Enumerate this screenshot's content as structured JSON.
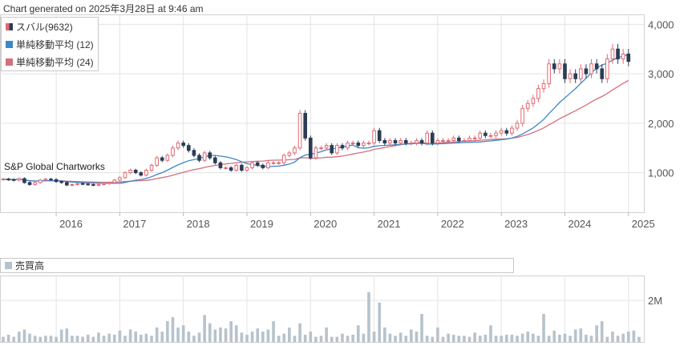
{
  "header": {
    "generated_note": "Chart generated on 2025年3月28日 at 9:46 am"
  },
  "watermark": "S&P Global Chartworks",
  "legend": {
    "items": [
      {
        "label": "スバル(9632)",
        "color": "#e0707a"
      },
      {
        "label": "単純移動平均 (12)",
        "color": "#3d87c9"
      },
      {
        "label": "単純移動平均 (24)",
        "color": "#d4707e"
      }
    ]
  },
  "volume_legend": {
    "label": "売買高",
    "color": "#b7c3cc"
  },
  "colors": {
    "up": "#e06a74",
    "down": "#2d3c55",
    "ma12": "#3d87c9",
    "ma24": "#d4707e",
    "volume": "#b7c3cc",
    "grid": "#e3e3e3"
  },
  "chart_data": [
    {
      "type": "candlestick",
      "interval": "monthly",
      "x_start": "2015-03",
      "x_end": "2025-03",
      "x_tick_labels": [
        "2016",
        "2017",
        "2018",
        "2019",
        "2020",
        "2021",
        "2022",
        "2023",
        "2024",
        "2025"
      ],
      "y_tick_labels": [
        "1,000",
        "2,000",
        "3,000",
        "4,000"
      ],
      "y_ticks": [
        1000,
        2000,
        3000,
        4000
      ],
      "ylim": [
        200,
        4200
      ],
      "close": [
        870,
        860,
        850,
        880,
        800,
        760,
        800,
        850,
        870,
        860,
        820,
        800,
        750,
        760,
        780,
        770,
        760,
        750,
        760,
        780,
        800,
        850,
        900,
        1000,
        1050,
        1000,
        950,
        1050,
        1150,
        1300,
        1250,
        1350,
        1500,
        1600,
        1550,
        1450,
        1350,
        1250,
        1400,
        1300,
        1200,
        1100,
        1100,
        1050,
        1150,
        1050,
        1100,
        1200,
        1150,
        1100,
        1200,
        1200,
        1200,
        1350,
        1400,
        1500,
        2200,
        1700,
        1300,
        1500,
        1500,
        1550,
        1400,
        1550,
        1500,
        1600,
        1600,
        1550,
        1600,
        1600,
        1850,
        1650,
        1600,
        1650,
        1600,
        1650,
        1600,
        1600,
        1650,
        1600,
        1800,
        1600,
        1650,
        1650,
        1650,
        1700,
        1650,
        1650,
        1700,
        1700,
        1800,
        1750,
        1750,
        1800,
        1850,
        1800,
        1900,
        2000,
        2300,
        2400,
        2500,
        2700,
        2800,
        3200,
        3100,
        3200,
        2900,
        3000,
        2900,
        3100,
        3000,
        3200,
        3100,
        2900,
        3300,
        3500,
        3300,
        3400,
        3250
      ],
      "ma12": [
        870,
        867,
        863,
        867,
        853,
        838,
        832,
        833,
        837,
        839,
        837,
        830,
        820,
        811,
        805,
        796,
        793,
        792,
        789,
        783,
        784,
        784,
        787,
        803,
        828,
        848,
        862,
        885,
        917,
        962,
        1001,
        1051,
        1107,
        1157,
        1203,
        1241,
        1266,
        1287,
        1325,
        1346,
        1350,
        1333,
        1320,
        1295,
        1266,
        1220,
        1183,
        1162,
        1145,
        1132,
        1120,
        1129,
        1133,
        1150,
        1175,
        1213,
        1304,
        1358,
        1371,
        1396,
        1425,
        1462,
        1479,
        1495,
        1520,
        1541,
        1558,
        1504,
        1496,
        1504,
        1533,
        1546,
        1550,
        1558,
        1563,
        1571,
        1579,
        1583,
        1592,
        1596,
        1579,
        1579,
        1583,
        1588,
        1592,
        1600,
        1605,
        1609,
        1613,
        1621,
        1621,
        1633,
        1641,
        1654,
        1667,
        1679,
        1700,
        1733,
        1783,
        1842,
        1904,
        1988,
        2075,
        2196,
        2304,
        2421,
        2513,
        2608,
        2700,
        2808,
        2908,
        3017,
        3117,
        3175,
        3217,
        3275,
        3325,
        3358,
        3388
      ]
    },
    {
      "type": "bar",
      "title": "売買高",
      "y_tick_labels": [
        "2M"
      ],
      "y_ticks": [
        2000000
      ],
      "ylim": [
        0,
        3200000
      ],
      "values": [
        250000,
        350000,
        250000,
        500000,
        600000,
        400000,
        300000,
        250000,
        300000,
        300000,
        250000,
        600000,
        650000,
        300000,
        300000,
        250000,
        350000,
        250000,
        450000,
        300000,
        400000,
        350000,
        550000,
        300000,
        600000,
        500000,
        350000,
        400000,
        300000,
        700000,
        500000,
        1000000,
        1200000,
        700000,
        800000,
        500000,
        300000,
        450000,
        1300000,
        900000,
        600000,
        700000,
        650000,
        1000000,
        800000,
        450000,
        350000,
        500000,
        650000,
        500000,
        600000,
        1000000,
        300000,
        400000,
        700000,
        300000,
        900000,
        350000,
        500000,
        250000,
        300000,
        700000,
        250000,
        250000,
        400000,
        300000,
        350000,
        800000,
        400000,
        2400000,
        500000,
        1900000,
        700000,
        400000,
        300000,
        450000,
        300000,
        600000,
        500000,
        1350000,
        300000,
        250000,
        700000,
        250000,
        400000,
        350000,
        300000,
        300000,
        250000,
        450000,
        300000,
        350000,
        800000,
        300000,
        300000,
        350000,
        350000,
        300000,
        400000,
        500000,
        400000,
        300000,
        1350000,
        300000,
        550000,
        350000,
        400000,
        300000,
        600000,
        650000,
        350000,
        300000,
        800000,
        1000000,
        250000,
        500000,
        300000,
        400000,
        500000,
        550000,
        250000
      ]
    }
  ]
}
